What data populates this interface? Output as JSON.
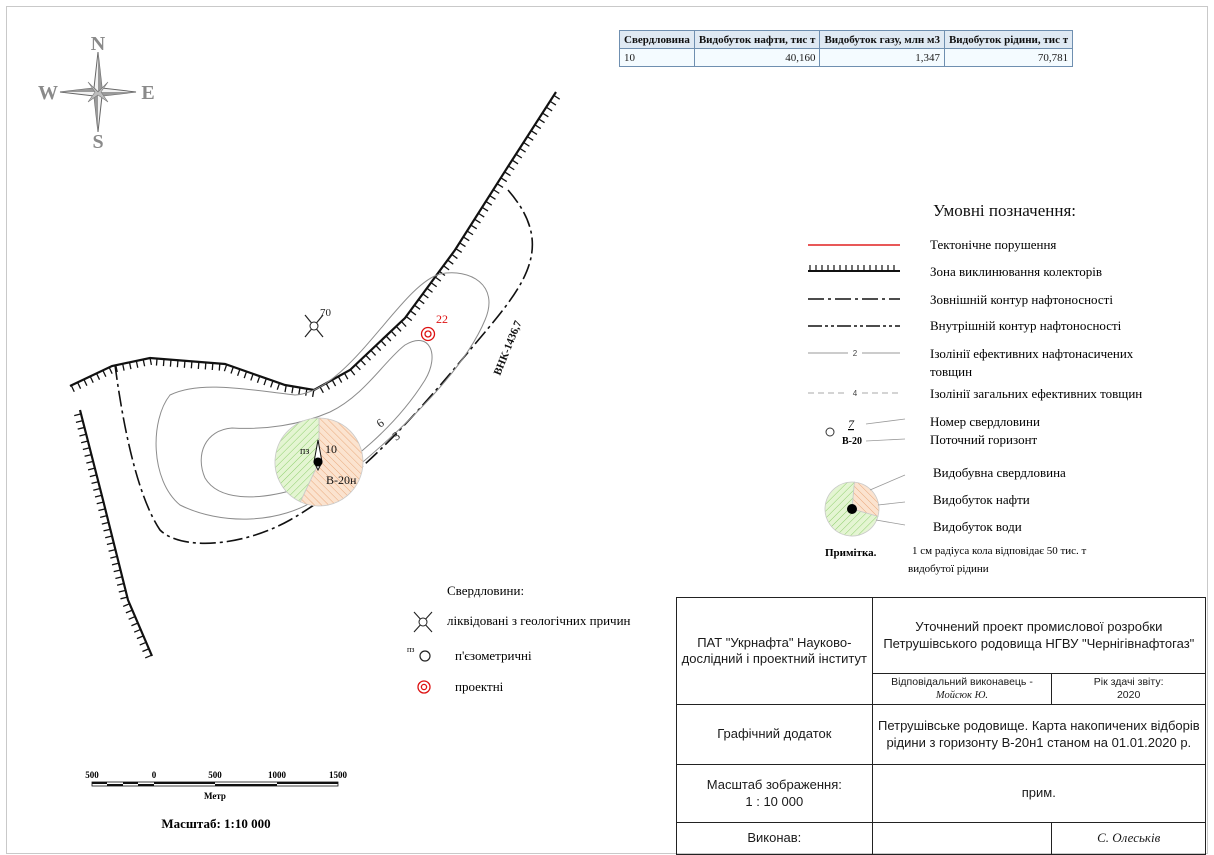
{
  "compass": {
    "n": "N",
    "s": "S",
    "e": "E",
    "w": "W"
  },
  "table": {
    "headers": [
      "Свердловина",
      "Видобуток нафти, тис т",
      "Видобуток газу, млн м3",
      "Видобуток рідини, тис т"
    ],
    "rows": [
      {
        "well": "10",
        "oil": "40,160",
        "gas": "1,347",
        "liquid": "70,781"
      }
    ]
  },
  "map": {
    "wells": [
      {
        "number": "70",
        "type": "liquidated"
      },
      {
        "number": "22",
        "type": "projected"
      },
      {
        "number": "10",
        "prefix": "пз",
        "horizon": "В-20н",
        "type": "piezometric",
        "oil_fraction": 0.57,
        "water_fraction": 0.43
      }
    ],
    "contour_labels": [
      "6",
      "3"
    ],
    "vnk_label": "ВНК-1436,7"
  },
  "legend": {
    "title": "Умовні позначення:",
    "items": [
      "Тектонічне порушення",
      "Зона виклинювання колекторів",
      "Зовнішній контур нафтоносності",
      "Внутрішній контур нафтоносності",
      "Ізолінії ефективних нафтонасичених товщин",
      "Ізолінії загальних ефективних товщин"
    ],
    "isoline_eff_value": "2",
    "isoline_total_value": "4",
    "well_sample_number": "7",
    "well_sample_horizon": "В-20",
    "well_number_label": "Номер свердловини",
    "horizon_label": "Поточний горизонт",
    "producing_well": "Видобувна свердловина",
    "oil_production": "Видобуток нафти",
    "water_production": "Видобуток води",
    "note_label": "Примітка.",
    "note_line1": "1 см радіуса кола відповідає 50  тис. т",
    "note_line2": "видобутої рідини"
  },
  "wells_legend": {
    "title": "Свердловини:",
    "liquidated": "ліквідовані з геологічних причин",
    "piezometric_prefix": "пз",
    "piezometric": "п'єзометричні",
    "projected": "проектні"
  },
  "scale": {
    "ticks": [
      "500",
      "0",
      "500",
      "1000",
      "1500"
    ],
    "unit": "Метр",
    "caption": "Масштаб: 1:10 000"
  },
  "title_block": {
    "org": "ПАТ \"Укрнафта\" Науково-дослідний і проектний інститут",
    "project": "Уточнений проект промислової розробки Петрушівського родовища НГВУ \"Чернігівнафтогаз\"",
    "responsible_label": "Відповідальний виконавець -",
    "responsible_name": "Мойсюк Ю.",
    "year_label": "Рік здачі звіту:",
    "year": "2020",
    "appendix": "Графічний додаток",
    "map_title": "Петрушівське родовище. Карта накопичених відборів рідини з горизонту В-20н1 станом на 01.01.2020 р.",
    "scale_label": "Масштаб зображення:",
    "scale_value": "1 : 10 000",
    "note": "прим.",
    "executed_label": "Виконав:",
    "executor": "С. Олеськів"
  }
}
